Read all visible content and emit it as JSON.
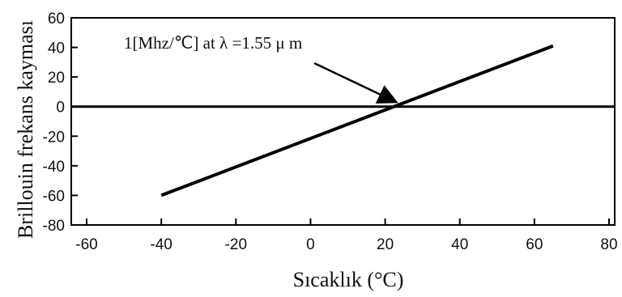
{
  "chart_data": {
    "type": "line",
    "title": "",
    "xlabel": "Sıcaklık (°C)",
    "ylabel": "Brillouin frekans kayması",
    "xlim": [
      -60,
      80
    ],
    "ylim": [
      -80,
      60
    ],
    "x_ticks": [
      -60,
      -40,
      -20,
      0,
      20,
      40,
      60,
      80
    ],
    "y_ticks": [
      60,
      40,
      20,
      0,
      -20,
      -40,
      -60,
      -80
    ],
    "grid": false,
    "zero_line": true,
    "series": [
      {
        "x": [
          -40,
          65
        ],
        "y": [
          -60,
          41
        ]
      }
    ],
    "annotations": [
      {
        "text": "1[Mhz/℃] at  λ =1.55 μ m",
        "points_to": {
          "x": 23,
          "y": 3
        }
      }
    ]
  }
}
